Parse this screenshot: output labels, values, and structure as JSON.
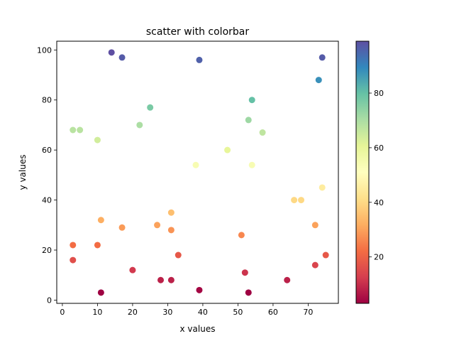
{
  "chart_data": {
    "type": "scatter",
    "title": "scatter with colorbar",
    "xlabel": "x values",
    "ylabel": "y values",
    "xlim": [
      -1.6,
      78.6
    ],
    "ylim": [
      -1.3,
      103.5
    ],
    "xticks": [
      "0",
      "10",
      "20",
      "30",
      "40",
      "50",
      "60",
      "70"
    ],
    "yticks": [
      "0",
      "20",
      "40",
      "60",
      "80",
      "100"
    ],
    "grid": false,
    "colormap": "Spectral",
    "colorbar": {
      "range": [
        3,
        99
      ],
      "ticks": [
        "20",
        "40",
        "60",
        "80"
      ]
    },
    "points": [
      {
        "x": 14,
        "y": 99
      },
      {
        "x": 17,
        "y": 97
      },
      {
        "x": 39,
        "y": 96
      },
      {
        "x": 74,
        "y": 97
      },
      {
        "x": 73,
        "y": 88
      },
      {
        "x": 54,
        "y": 80
      },
      {
        "x": 25,
        "y": 77
      },
      {
        "x": 53,
        "y": 72
      },
      {
        "x": 22,
        "y": 70
      },
      {
        "x": 3,
        "y": 68
      },
      {
        "x": 5,
        "y": 68
      },
      {
        "x": 57,
        "y": 67
      },
      {
        "x": 10,
        "y": 64
      },
      {
        "x": 47,
        "y": 60
      },
      {
        "x": 38,
        "y": 54
      },
      {
        "x": 54,
        "y": 54
      },
      {
        "x": 74,
        "y": 45
      },
      {
        "x": 66,
        "y": 40
      },
      {
        "x": 68,
        "y": 40
      },
      {
        "x": 31,
        "y": 35
      },
      {
        "x": 11,
        "y": 32
      },
      {
        "x": 27,
        "y": 30
      },
      {
        "x": 72,
        "y": 30
      },
      {
        "x": 17,
        "y": 29
      },
      {
        "x": 31,
        "y": 28
      },
      {
        "x": 51,
        "y": 26
      },
      {
        "x": 3,
        "y": 22
      },
      {
        "x": 10,
        "y": 22
      },
      {
        "x": 33,
        "y": 18
      },
      {
        "x": 75,
        "y": 18
      },
      {
        "x": 3,
        "y": 16
      },
      {
        "x": 72,
        "y": 14
      },
      {
        "x": 20,
        "y": 12
      },
      {
        "x": 52,
        "y": 11
      },
      {
        "x": 28,
        "y": 8
      },
      {
        "x": 31,
        "y": 8
      },
      {
        "x": 64,
        "y": 8
      },
      {
        "x": 39,
        "y": 4
      },
      {
        "x": 11,
        "y": 3
      },
      {
        "x": 53,
        "y": 3
      }
    ]
  }
}
